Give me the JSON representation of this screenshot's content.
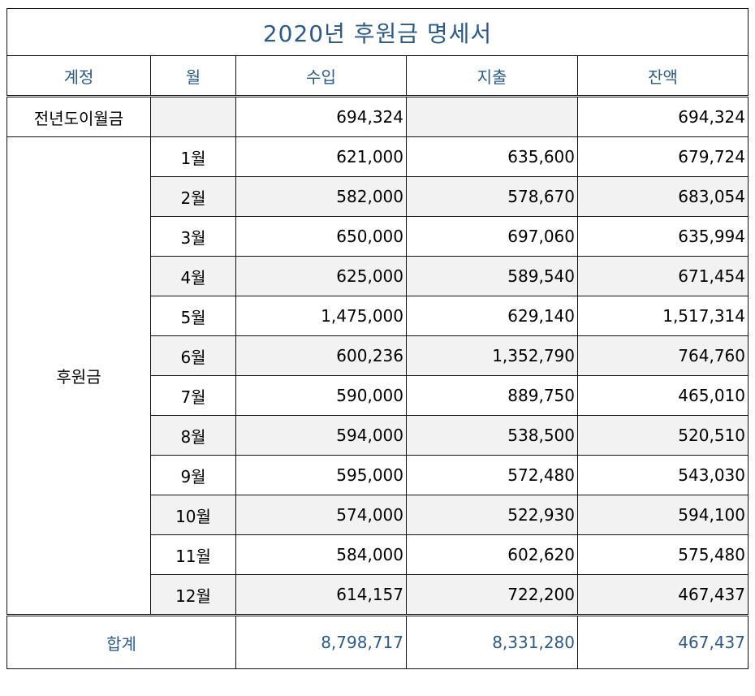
{
  "title": "2020년 후원금 명세서",
  "headers": {
    "account": "계정",
    "month": "월",
    "income": "수입",
    "expense": "지출",
    "balance": "잔액"
  },
  "carry_over": {
    "label": "전년도이월금",
    "income": "694,324",
    "balance": "694,324"
  },
  "donation_label": "후원금",
  "months": [
    {
      "month": "1월",
      "income": "621,000",
      "expense": "635,600",
      "balance": "679,724"
    },
    {
      "month": "2월",
      "income": "582,000",
      "expense": "578,670",
      "balance": "683,054"
    },
    {
      "month": "3월",
      "income": "650,000",
      "expense": "697,060",
      "balance": "635,994"
    },
    {
      "month": "4월",
      "income": "625,000",
      "expense": "589,540",
      "balance": "671,454"
    },
    {
      "month": "5월",
      "income": "1,475,000",
      "expense": "629,140",
      "balance": "1,517,314"
    },
    {
      "month": "6월",
      "income": "600,236",
      "expense": "1,352,790",
      "balance": "764,760"
    },
    {
      "month": "7월",
      "income": "590,000",
      "expense": "889,750",
      "balance": "465,010"
    },
    {
      "month": "8월",
      "income": "594,000",
      "expense": "538,500",
      "balance": "520,510"
    },
    {
      "month": "9월",
      "income": "595,000",
      "expense": "572,480",
      "balance": "543,030"
    },
    {
      "month": "10월",
      "income": "574,000",
      "expense": "522,930",
      "balance": "594,100"
    },
    {
      "month": "11월",
      "income": "584,000",
      "expense": "602,620",
      "balance": "575,480"
    },
    {
      "month": "12월",
      "income": "614,157",
      "expense": "722,200",
      "balance": "467,437"
    }
  ],
  "total": {
    "label": "합계",
    "income": "8,798,717",
    "expense": "8,331,280",
    "balance": "467,437"
  },
  "colors": {
    "header_text": "#2b5a8c",
    "shaded_row": "#f2f2f2"
  }
}
